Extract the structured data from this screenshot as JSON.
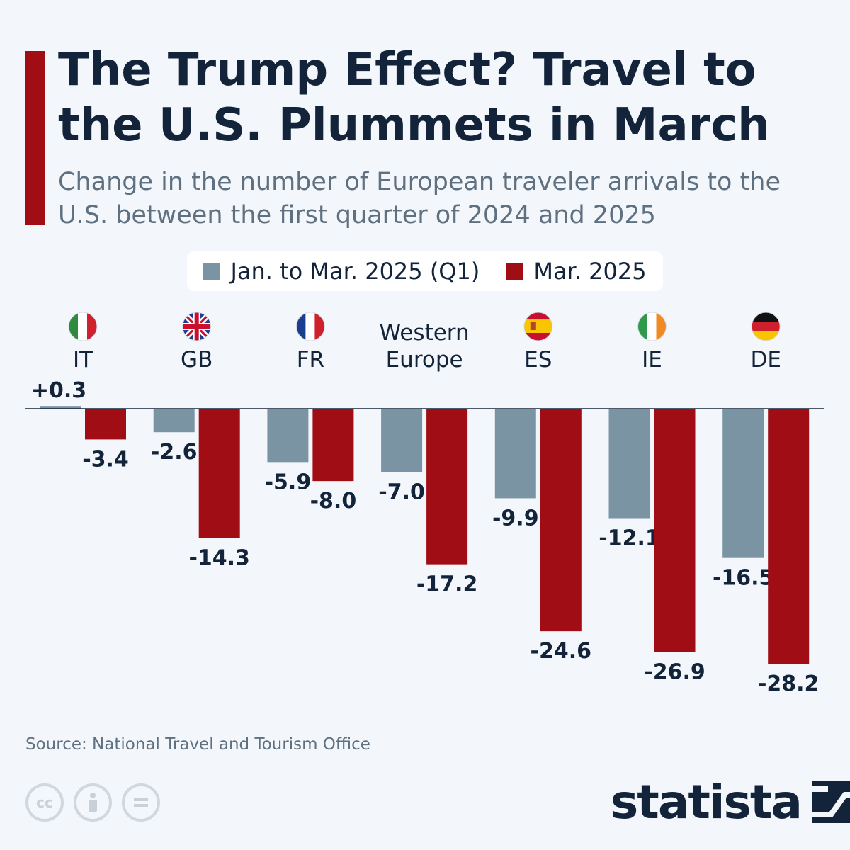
{
  "title": "The Trump Effect? Travel to the U.S. Plummets in March",
  "subtitle": "Change in the number of European traveler arrivals to the U.S. between the first quarter of 2024 and 2025",
  "source": "Source: National Travel and Tourism Office",
  "brand": "statista",
  "colors": {
    "q1": "#7b94a4",
    "mar": "#a00d14",
    "text": "#13243a"
  },
  "chart_data": {
    "type": "bar",
    "title": "The Trump Effect? Travel to the U.S. Plummets in March",
    "categories": [
      {
        "label": "IT",
        "flag": "italy-flag-icon"
      },
      {
        "label": "GB",
        "flag": "uk-flag-icon"
      },
      {
        "label": "FR",
        "flag": "france-flag-icon"
      },
      {
        "label": "Western Europe",
        "flag": null
      },
      {
        "label": "ES",
        "flag": "spain-flag-icon"
      },
      {
        "label": "IE",
        "flag": "ireland-flag-icon"
      },
      {
        "label": "DE",
        "flag": "germany-flag-icon"
      }
    ],
    "series": [
      {
        "name": "Jan. to Mar. 2025 (Q1)",
        "color": "#7b94a4",
        "values": [
          0.3,
          -2.6,
          -5.9,
          -7.0,
          -9.9,
          -12.1,
          -16.5
        ],
        "labels": [
          "+0.3",
          "-2.6",
          "-5.9",
          "-7.0",
          "-9.9",
          "-12.1",
          "-16.5"
        ]
      },
      {
        "name": "Mar. 2025",
        "color": "#a00d14",
        "values": [
          -3.4,
          -14.3,
          -8.0,
          -17.2,
          -24.6,
          -26.9,
          -28.2
        ],
        "labels": [
          "-3.4",
          "-14.3",
          "-8.0",
          "-17.2",
          "-24.6",
          "-26.9",
          "-28.2"
        ]
      }
    ],
    "xlabel": "",
    "ylabel": "",
    "ylim": [
      -28.2,
      0.3
    ],
    "legend": "top-center",
    "grid": false
  }
}
